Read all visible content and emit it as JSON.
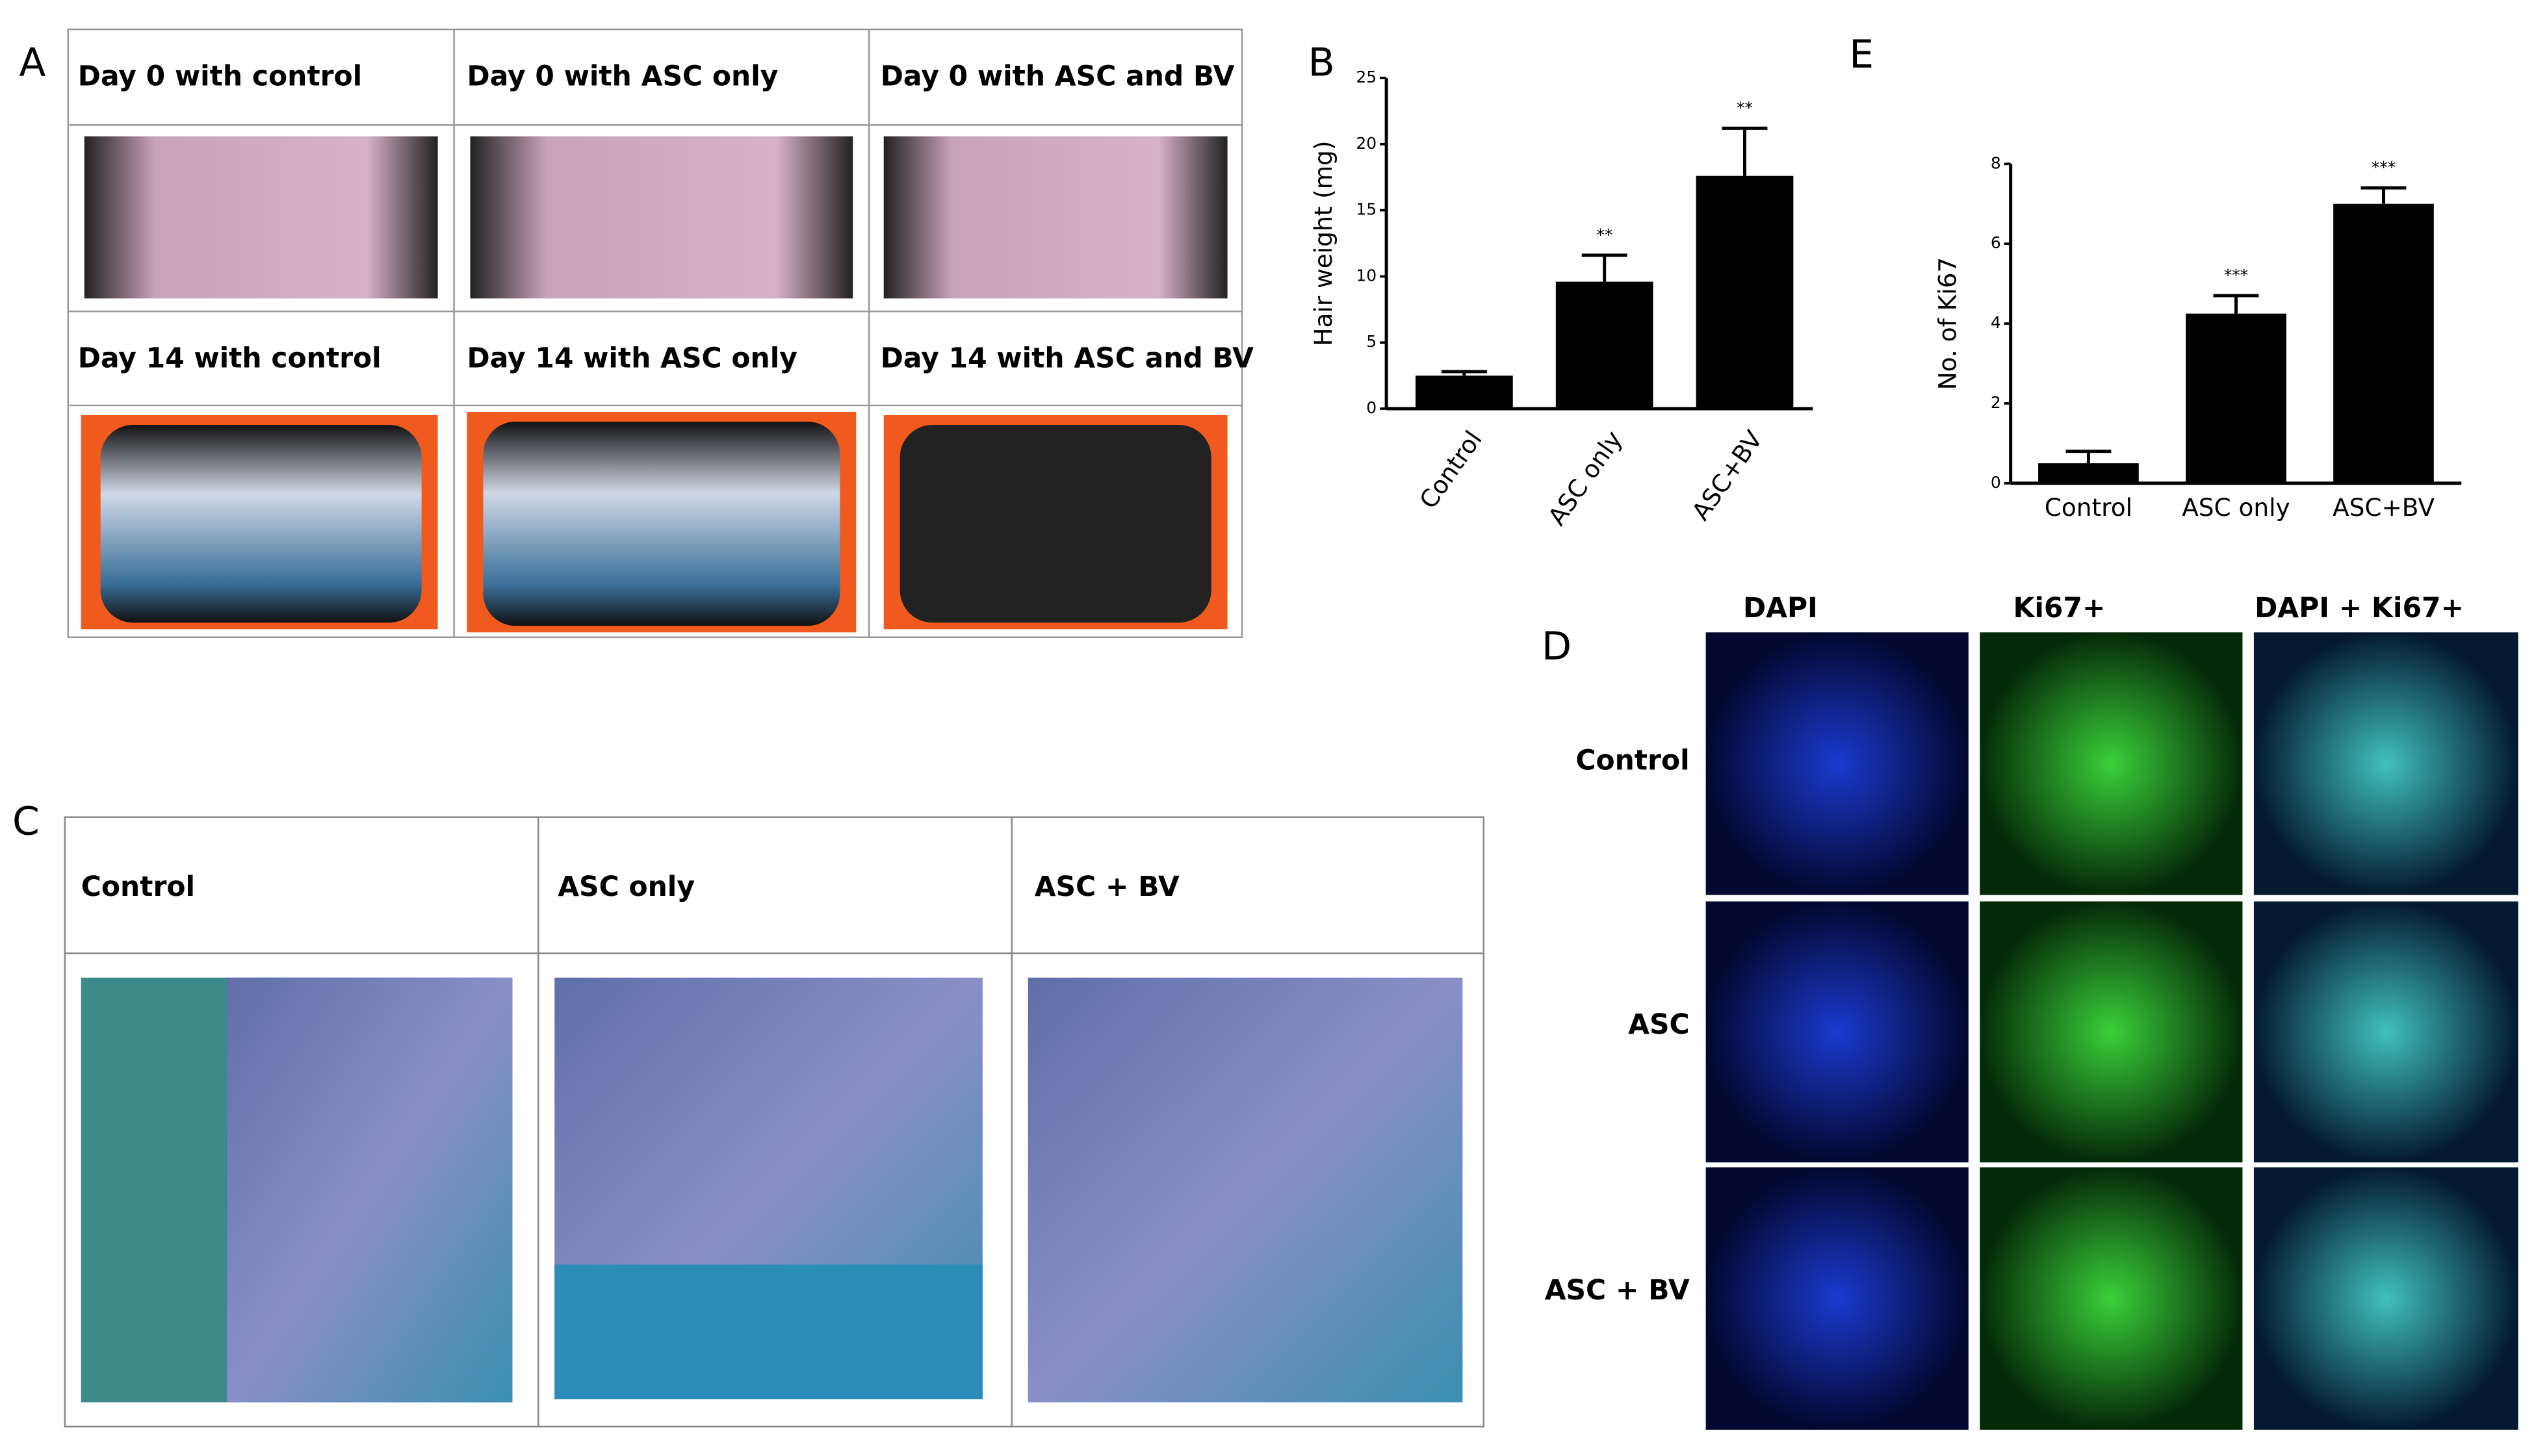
{
  "panel_labels": [
    "A",
    "B",
    "C",
    "D",
    "E"
  ],
  "panel_a": {
    "rows": [
      [
        "Day 0 with control",
        "Day 0 with ASC only",
        "Day 0 with ASC and BV"
      ],
      [
        "Day 14 with control",
        "Day 14 with ASC only",
        "Day 14 with ASC and BV"
      ]
    ]
  },
  "panel_c": {
    "headers": [
      "Control",
      "ASC only",
      "ASC + BV"
    ]
  },
  "panel_d": {
    "columns": [
      "DAPI",
      "Ki67+",
      "DAPI + Ki67+"
    ],
    "rows": [
      "Control",
      "ASC",
      "ASC + BV"
    ]
  },
  "chart_data": [
    {
      "type": "bar",
      "ylabel": "Hair weight (mg)",
      "categories": [
        "Control",
        "ASC only",
        "ASC+BV"
      ],
      "series": [
        {
          "color": "#000000",
          "values": [
            2.5,
            9.6,
            17.6
          ],
          "errors": [
            0.3,
            2.0,
            3.6
          ]
        }
      ],
      "annotations": [
        {
          "index": 1,
          "text": "**"
        },
        {
          "index": 2,
          "text": "**"
        }
      ],
      "ylim": [
        0,
        25
      ],
      "yticks": [
        0,
        5,
        10,
        15,
        20,
        25
      ],
      "rotate_labels": true
    },
    {
      "type": "bar",
      "ylabel": "No. of Ki67",
      "categories": [
        "Control",
        "ASC only",
        "ASC+BV"
      ],
      "series": [
        {
          "color": "#000000",
          "values": [
            0.5,
            4.25,
            7.0
          ],
          "errors": [
            0.3,
            0.45,
            0.4
          ]
        }
      ],
      "annotations": [
        {
          "index": 1,
          "text": "***"
        },
        {
          "index": 2,
          "text": "***"
        }
      ],
      "ylim": [
        0,
        8
      ],
      "yticks": [
        0,
        2,
        4,
        6,
        8
      ],
      "rotate_labels": false
    }
  ]
}
